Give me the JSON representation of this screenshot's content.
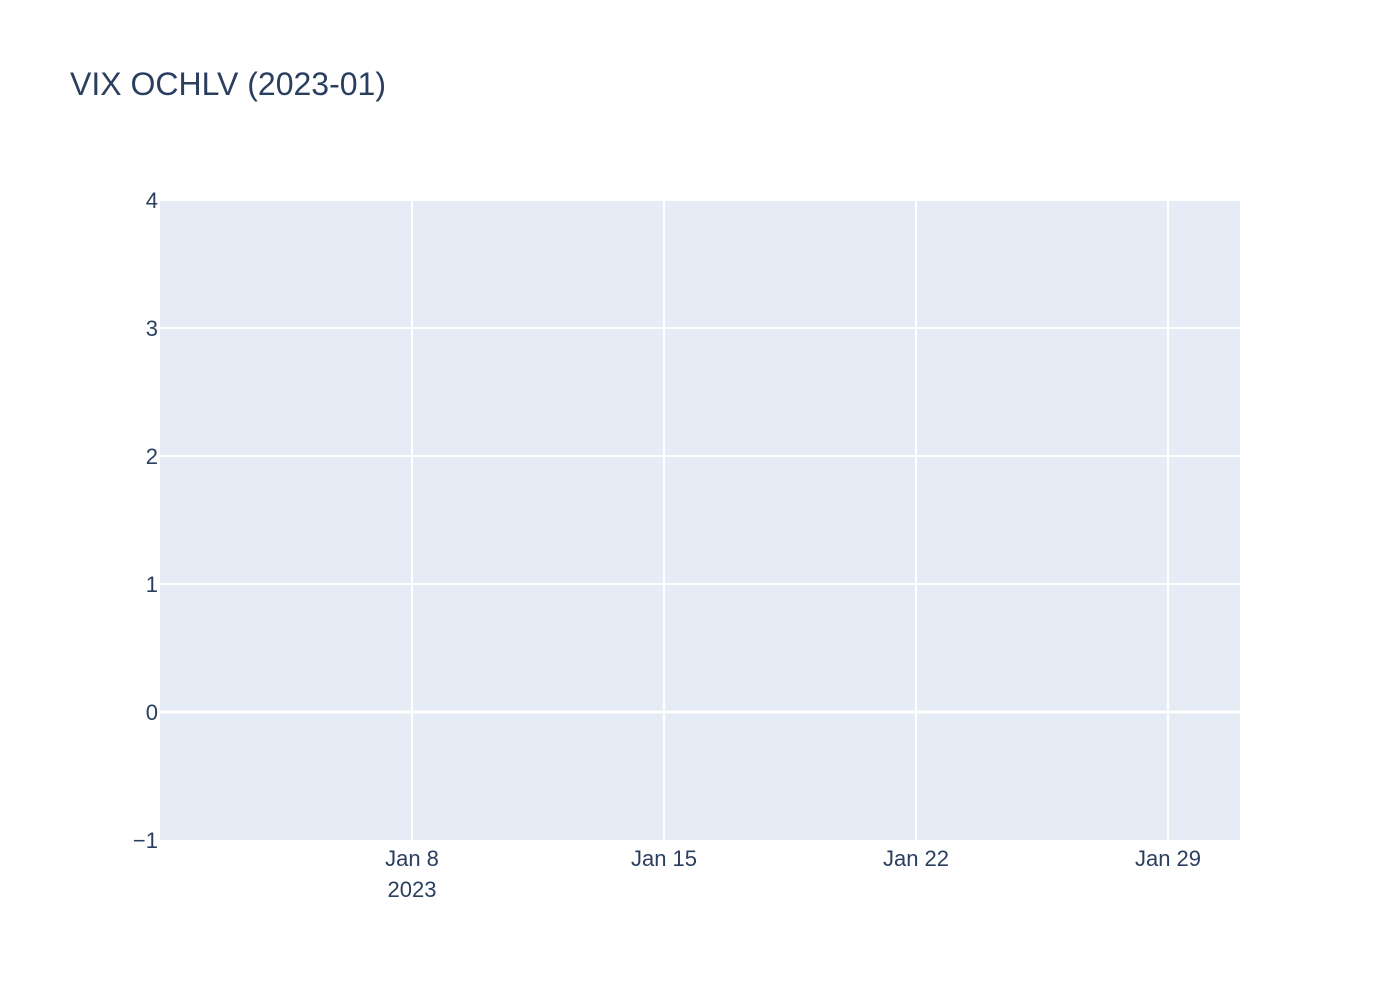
{
  "chart_data": {
    "type": "candlestick",
    "title": "VIX OCHLV (2023-01)",
    "xlabel": "",
    "ylabel": "",
    "x_range": [
      "2023-01-01",
      "2023-01-31"
    ],
    "x_ticks": [
      {
        "date": "2023-01-08",
        "label": "Jan 8",
        "sublabel": "2023"
      },
      {
        "date": "2023-01-15",
        "label": "Jan 15",
        "sublabel": ""
      },
      {
        "date": "2023-01-22",
        "label": "Jan 22",
        "sublabel": ""
      },
      {
        "date": "2023-01-29",
        "label": "Jan 29",
        "sublabel": ""
      }
    ],
    "ylim": [
      -1,
      4
    ],
    "y_ticks": [
      {
        "value": -1,
        "label": "−1"
      },
      {
        "value": 0,
        "label": "0"
      },
      {
        "value": 1,
        "label": "1"
      },
      {
        "value": 2,
        "label": "2"
      },
      {
        "value": 3,
        "label": "3"
      },
      {
        "value": 4,
        "label": "4"
      }
    ],
    "series": [],
    "grid": true,
    "legend": "none",
    "colors": {
      "plot_background": "#e5ecf6",
      "grid": "#ffffff",
      "text": "#2a3f5f"
    }
  }
}
